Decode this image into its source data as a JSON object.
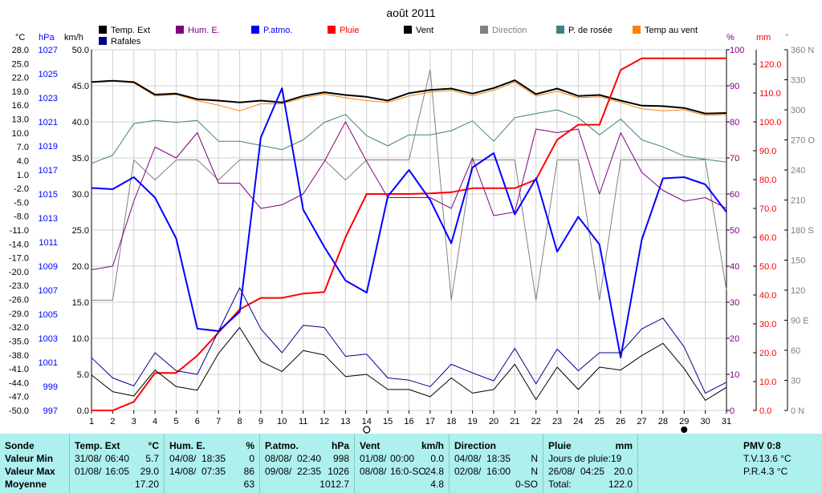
{
  "title": "août 2011",
  "axis_headers": {
    "celsius": "°C",
    "hpa": "hPa",
    "kmh": "km/h",
    "percent": "%",
    "mm": "mm",
    "degree": "°"
  },
  "legend": [
    {
      "label": "Temp. Ext",
      "color": "#000000"
    },
    {
      "label": "Rafales",
      "color": "#00008c"
    },
    {
      "label": "Hum. E.",
      "color": "#800080"
    },
    {
      "label": "P.atmo.",
      "color": "#0000ff"
    },
    {
      "label": "Pluie",
      "color": "#ff0000"
    },
    {
      "label": "Vent",
      "color": "#000000"
    },
    {
      "label": "Direction",
      "color": "#808080"
    },
    {
      "label": "P. de rosée",
      "color": "#408080"
    },
    {
      "label": "Temp au vent",
      "color": "#ff8000"
    }
  ],
  "chart_data": {
    "type": "line",
    "title": "août 2011",
    "x": [
      1,
      2,
      3,
      4,
      5,
      6,
      7,
      8,
      9,
      10,
      11,
      12,
      13,
      14,
      15,
      16,
      17,
      18,
      19,
      20,
      21,
      22,
      23,
      24,
      25,
      26,
      27,
      28,
      29,
      30,
      31
    ],
    "axes": {
      "kmh": {
        "min": 0,
        "max": 50,
        "ticks": [
          "0.0",
          "5.0",
          "10.0",
          "15.0",
          "20.0",
          "25.0",
          "30.0",
          "35.0",
          "40.0",
          "45.0",
          "50.0"
        ]
      },
      "celsius": {
        "ticks": [
          "-50.0",
          "-47.0",
          "-44.0",
          "-41.0",
          "-38.0",
          "-35.0",
          "-32.0",
          "-29.0",
          "-26.0",
          "-23.0",
          "-20.0",
          "-17.0",
          "-14.0",
          "-11.0",
          "-8.0",
          "-5.0",
          "-2.0",
          "1.0",
          "4.0",
          "7.0",
          "10.0",
          "13.0",
          "16.0",
          "19.0",
          "22.0",
          "25.0",
          "28.0"
        ]
      },
      "hpa": {
        "min": 997,
        "max": 1027,
        "ticks": [
          "997",
          "999",
          "1001",
          "1003",
          "1005",
          "1007",
          "1009",
          "1011",
          "1013",
          "1015",
          "1017",
          "1019",
          "1021",
          "1023",
          "1025",
          "1027"
        ]
      },
      "percent": {
        "min": 0,
        "max": 100,
        "ticks": [
          "0",
          "10",
          "20",
          "30",
          "40",
          "50",
          "60",
          "70",
          "80",
          "90",
          "100"
        ]
      },
      "mm": {
        "min": 0,
        "max": 125,
        "ticks": [
          "0.0",
          "10.0",
          "20.0",
          "30.0",
          "40.0",
          "50.0",
          "60.0",
          "70.0",
          "80.0",
          "90.0",
          "100.0",
          "110.0",
          "120.0"
        ]
      },
      "direction": {
        "ticks": [
          "0 N",
          "30",
          "60",
          "90 E",
          "120",
          "150",
          "180 S",
          "210",
          "240",
          "270 O",
          "300",
          "330",
          "360 N"
        ]
      }
    },
    "series": [
      {
        "name": "Temp. Ext",
        "color": "#000000",
        "axis": "celsius",
        "width": 2,
        "values": [
          21.0,
          21.3,
          21.0,
          18.3,
          18.5,
          17.3,
          17.0,
          16.6,
          17.0,
          16.6,
          18.0,
          18.8,
          18.2,
          17.8,
          17.0,
          18.6,
          19.3,
          19.6,
          18.5,
          19.7,
          21.4,
          18.4,
          19.6,
          18.0,
          18.2,
          17.0,
          15.9,
          15.8,
          15.4,
          14.2,
          14.3
        ]
      },
      {
        "name": "Temp au vent",
        "color": "#ff8000",
        "axis": "celsius",
        "width": 1,
        "values": [
          21.0,
          21.3,
          20.8,
          18.0,
          18.3,
          17.0,
          16.0,
          14.8,
          16.3,
          16.3,
          17.6,
          18.4,
          17.6,
          17.0,
          16.6,
          18.0,
          18.8,
          19.2,
          18.0,
          19.2,
          21.0,
          18.0,
          19.0,
          17.6,
          17.8,
          16.6,
          15.2,
          14.8,
          15.0,
          13.8,
          14.0
        ]
      },
      {
        "name": "P. de rosée",
        "color": "#408080",
        "axis": "celsius",
        "width": 1,
        "values": [
          3.4,
          5.2,
          12.0,
          12.7,
          12.3,
          12.7,
          8.2,
          8.2,
          7.3,
          6.4,
          8.5,
          12.3,
          14.0,
          9.4,
          7.2,
          9.6,
          9.6,
          10.5,
          12.6,
          8.2,
          13.3,
          14.2,
          15.0,
          13.3,
          9.6,
          13.0,
          8.5,
          7.0,
          5.0,
          4.3,
          3.7
        ]
      },
      {
        "name": "Hum. E.",
        "color": "#800080",
        "axis": "percent",
        "width": 1,
        "values": [
          39,
          40,
          58,
          73,
          70,
          77,
          63,
          63,
          56,
          57,
          60,
          69,
          80,
          69,
          59,
          59,
          59,
          56,
          70,
          54,
          55,
          78,
          77,
          78,
          60,
          77,
          66,
          61,
          58,
          59,
          56
        ]
      },
      {
        "name": "Direction",
        "color": "#808080",
        "axis": "direction",
        "width": 1,
        "values": [
          110,
          110,
          250,
          230,
          250,
          250,
          230,
          250,
          250,
          250,
          250,
          250,
          230,
          250,
          250,
          250,
          340,
          110,
          250,
          250,
          250,
          110,
          250,
          250,
          110,
          250,
          250,
          250,
          250,
          250,
          120
        ]
      },
      {
        "name": "P.atmo.",
        "color": "#0000ff",
        "axis": "hpa",
        "width": 2,
        "values": [
          1015.5,
          1015.4,
          1016.4,
          1014.7,
          1011.3,
          1003.8,
          1003.6,
          1005.2,
          1019.7,
          1023.8,
          1013.7,
          1010.6,
          1007.8,
          1006.8,
          1014.8,
          1017.0,
          1014.5,
          1010.9,
          1017.2,
          1018.4,
          1013.3,
          1016.3,
          1010.2,
          1013.1,
          1010.8,
          1001.4,
          1011.2,
          1016.3,
          1016.4,
          1015.8,
          1013.5
        ]
      },
      {
        "name": "Pluie",
        "color": "#ff0000",
        "axis": "mm",
        "width": 2,
        "values": [
          0.0,
          0.0,
          3.0,
          13.0,
          13.0,
          19.0,
          27.0,
          35.0,
          39.0,
          39.0,
          40.5,
          41.0,
          60.0,
          75.0,
          75.0,
          75.0,
          75.2,
          75.6,
          77.0,
          77.0,
          77.0,
          80.0,
          93.8,
          99.0,
          99.0,
          118.0,
          122.0,
          122.0,
          122.0,
          122.0,
          122.0
        ]
      },
      {
        "name": "Vent",
        "color": "#000000",
        "axis": "kmh",
        "width": 1,
        "values": [
          4.9,
          2.6,
          2.0,
          5.6,
          3.3,
          2.8,
          7.9,
          11.5,
          6.8,
          5.4,
          8.3,
          7.7,
          4.7,
          5.0,
          2.9,
          2.9,
          1.9,
          4.5,
          2.4,
          2.9,
          6.4,
          1.5,
          6.0,
          2.9,
          6.0,
          5.6,
          7.6,
          9.3,
          5.8,
          1.4,
          3.2
        ]
      },
      {
        "name": "Rafales",
        "color": "#00008c",
        "axis": "kmh",
        "width": 1,
        "values": [
          7.3,
          4.5,
          3.4,
          8.0,
          5.5,
          5.0,
          11.0,
          17.0,
          11.3,
          8.0,
          11.8,
          11.5,
          7.5,
          7.8,
          4.5,
          4.2,
          3.3,
          6.4,
          5.2,
          4.1,
          8.6,
          3.7,
          8.5,
          5.5,
          8.0,
          8.0,
          11.3,
          12.8,
          8.8,
          2.4,
          3.9
        ]
      }
    ]
  },
  "bottom_marks": {
    "circle_day": "14",
    "dot_day": "29"
  },
  "stats": {
    "sonde": {
      "header": "Sonde",
      "min": "Valeur Min",
      "max": "Valeur Max",
      "avg": "Moyenne"
    },
    "temp": {
      "header": "Temp. Ext",
      "unit": "°C",
      "min_date": "31/08/",
      "min_time": "06:40",
      "min_val": "5.7",
      "max_date": "01/08/",
      "max_time": "16:05",
      "max_val": "29.0",
      "avg": "17.20"
    },
    "hum": {
      "header": "Hum. E.",
      "unit": "%",
      "min_date": "04/08/",
      "min_time": "18:35",
      "min_val": "0",
      "max_date": "14/08/",
      "max_time": "07:35",
      "max_val": "86",
      "avg": "63"
    },
    "patmo": {
      "header": "P.atmo.",
      "unit": "hPa",
      "min_date": "08/08/",
      "min_time": "02:40",
      "min_val": "998",
      "max_date": "09/08/",
      "max_time": "22:35",
      "max_val": "1026",
      "avg": "1012.7"
    },
    "vent": {
      "header": "Vent",
      "unit": "km/h",
      "min_date": "01/08/",
      "min_time": "00:00",
      "min_val": "0.0",
      "max_date": "08/08/",
      "max_time": "16:0-SO",
      "max_val": "24.8",
      "avg": "4.8"
    },
    "direction": {
      "header": "Direction",
      "min_date": "04/08/",
      "min_time": "18:35",
      "min_val": "N",
      "max_date": "02/08/",
      "max_time": "16:00",
      "max_val": "N",
      "avg": "0-SO"
    },
    "pluie": {
      "header": "Pluie",
      "unit": "mm",
      "jours_label": "Jours de pluie:",
      "jours_val": "19",
      "max_date": "26/08/",
      "max_time": "04:25",
      "max_val": "20.0",
      "total_label": "Total:",
      "total_val": "122.0"
    },
    "pmv": {
      "header": "PMV 0:8",
      "tv": "T.V.13.6 °C",
      "pr": "P.R.4.3 °C"
    }
  }
}
